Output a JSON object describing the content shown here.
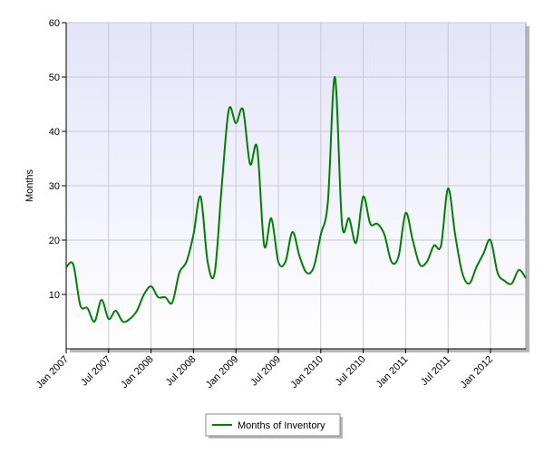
{
  "chart_data": {
    "type": "line",
    "y_label": "Months",
    "categories": [
      "Jan 2007",
      null,
      null,
      null,
      null,
      null,
      "Jul 2007",
      null,
      null,
      null,
      null,
      null,
      "Jan 2008",
      null,
      null,
      null,
      null,
      null,
      "Jul 2008",
      null,
      null,
      null,
      null,
      null,
      "Jan 2009",
      null,
      null,
      null,
      null,
      null,
      "Jul 2009",
      null,
      null,
      null,
      null,
      null,
      "Jan 2010",
      null,
      null,
      null,
      null,
      null,
      "Jul 2010",
      null,
      null,
      null,
      null,
      null,
      "Jan 2011",
      null,
      null,
      null,
      null,
      null,
      "Jul 2011",
      null,
      null,
      null,
      null,
      null,
      "Jan 2012",
      null,
      null,
      null,
      null,
      null
    ],
    "series": [
      {
        "name": "Months of Inventory",
        "color": "#008000",
        "values": [
          15,
          15.5,
          8,
          7.5,
          5,
          9,
          5.5,
          7,
          5,
          5.5,
          7,
          10,
          11.5,
          9.5,
          9.5,
          8.5,
          14,
          16,
          21,
          28,
          16,
          14,
          30,
          44,
          41.5,
          44,
          34,
          37,
          19,
          24,
          16,
          16,
          21.5,
          17,
          14,
          15,
          21,
          27,
          50,
          23,
          24,
          19.5,
          28,
          23,
          23,
          21,
          16,
          17,
          25,
          20,
          15.5,
          16,
          19,
          19,
          29.5,
          21,
          14,
          12,
          15,
          17.5,
          20,
          14,
          12.5,
          12,
          14.5,
          13
        ]
      }
    ],
    "ylim": [
      0,
      60
    ],
    "yticks": [
      10,
      20,
      30,
      40,
      50,
      60
    ],
    "grid": true
  }
}
